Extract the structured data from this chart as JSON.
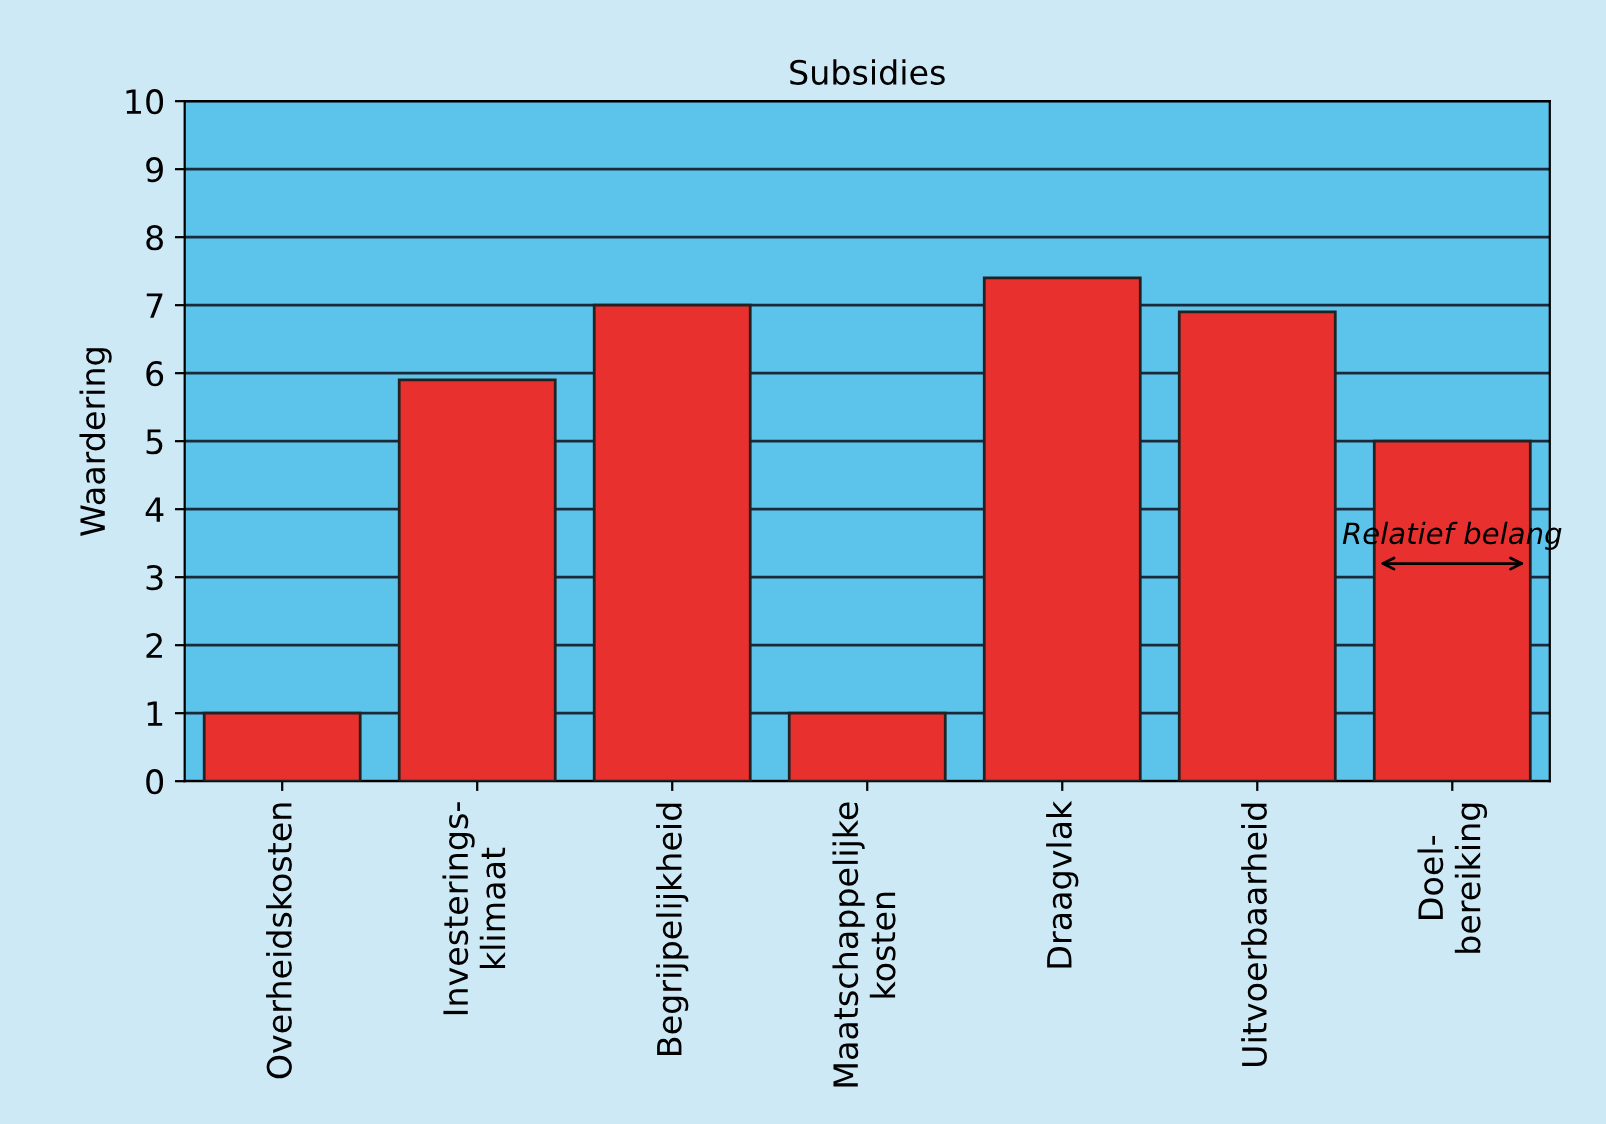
{
  "chart_data": {
    "type": "bar",
    "title": "Subsidies",
    "ylabel": "Waardering",
    "categories": [
      "Overheidskosten",
      "Investerings-\nklimaat",
      "Begrijpelijkheid",
      "Maatschappelijke\nkosten",
      "Draagvlak",
      "Uitvoerbaarheid",
      "Doel-\nbereiking"
    ],
    "values": [
      1,
      5.9,
      7,
      1,
      7.4,
      6.9,
      5
    ],
    "color": "#e8302f",
    "ylim": [
      0,
      10
    ],
    "yticks": [
      0,
      1,
      2,
      3,
      4,
      5,
      6,
      7,
      8,
      9,
      10
    ],
    "grid": "y",
    "annotations": [
      "Relatief belang"
    ]
  }
}
